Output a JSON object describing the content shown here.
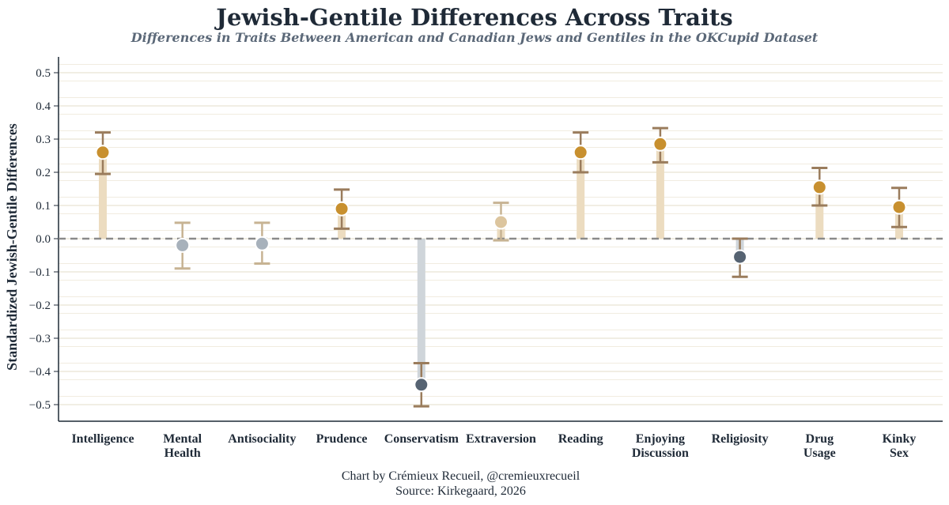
{
  "chart_data": {
    "type": "scatter",
    "title": "Jewish-Gentile Differences Across Traits",
    "subtitle": "Differences in Traits Between American and Canadian Jews and Gentiles in the OKCupid Dataset",
    "ylabel": "Standardized Jewish-Gentile Differences",
    "xlabel": "",
    "ylim": [
      -0.55,
      0.55
    ],
    "yticks": [
      -0.5,
      -0.4,
      -0.3,
      -0.2,
      -0.1,
      0.0,
      0.1,
      0.2,
      0.3,
      0.4,
      0.5
    ],
    "ytick_labels": [
      "−0.5",
      "−0.4",
      "−0.3",
      "−0.2",
      "−0.1",
      "0.0",
      "0.1",
      "0.2",
      "0.3",
      "0.4",
      "0.5"
    ],
    "categories": [
      [
        "Intelligence"
      ],
      [
        "Mental",
        "Health"
      ],
      [
        "Antisociality"
      ],
      [
        "Prudence"
      ],
      [
        "Conservatism"
      ],
      [
        "Extraversion"
      ],
      [
        "Reading"
      ],
      [
        "Enjoying",
        "Discussion"
      ],
      [
        "Religiosity"
      ],
      [
        "Drug",
        "Usage"
      ],
      [
        "Kinky",
        "Sex"
      ]
    ],
    "values": [
      0.26,
      -0.02,
      -0.015,
      0.09,
      -0.44,
      0.05,
      0.26,
      0.285,
      -0.055,
      0.155,
      0.095
    ],
    "ci_low": [
      0.195,
      -0.09,
      -0.075,
      0.03,
      -0.505,
      -0.005,
      0.2,
      0.23,
      -0.115,
      0.1,
      0.035
    ],
    "ci_high": [
      0.32,
      0.048,
      0.048,
      0.148,
      -0.375,
      0.108,
      0.32,
      0.333,
      0.0,
      0.213,
      0.153
    ],
    "significant": [
      true,
      false,
      false,
      true,
      true,
      false,
      true,
      true,
      true,
      true,
      true
    ],
    "zero_line": "dashed",
    "grid": true
  },
  "colors": {
    "pos_sig": "#c8902f",
    "pos_nonsig": "#dcc59e",
    "neg_sig": "#566372",
    "neg_nonsig": "#a7b1bb",
    "stem_pos": "#ecdcc0",
    "stem_neg": "#cfd5da",
    "err_sig": "#9a7c5c",
    "err_nonsig": "#c7b393",
    "grid": "#e3dcc9",
    "zero": "#8a8a8a",
    "axis": "#1f2a37"
  },
  "footer": {
    "credit": "Chart by Crémieux Recueil, @cremieuxrecueil",
    "source": "Source: Kirkegaard, 2026"
  }
}
